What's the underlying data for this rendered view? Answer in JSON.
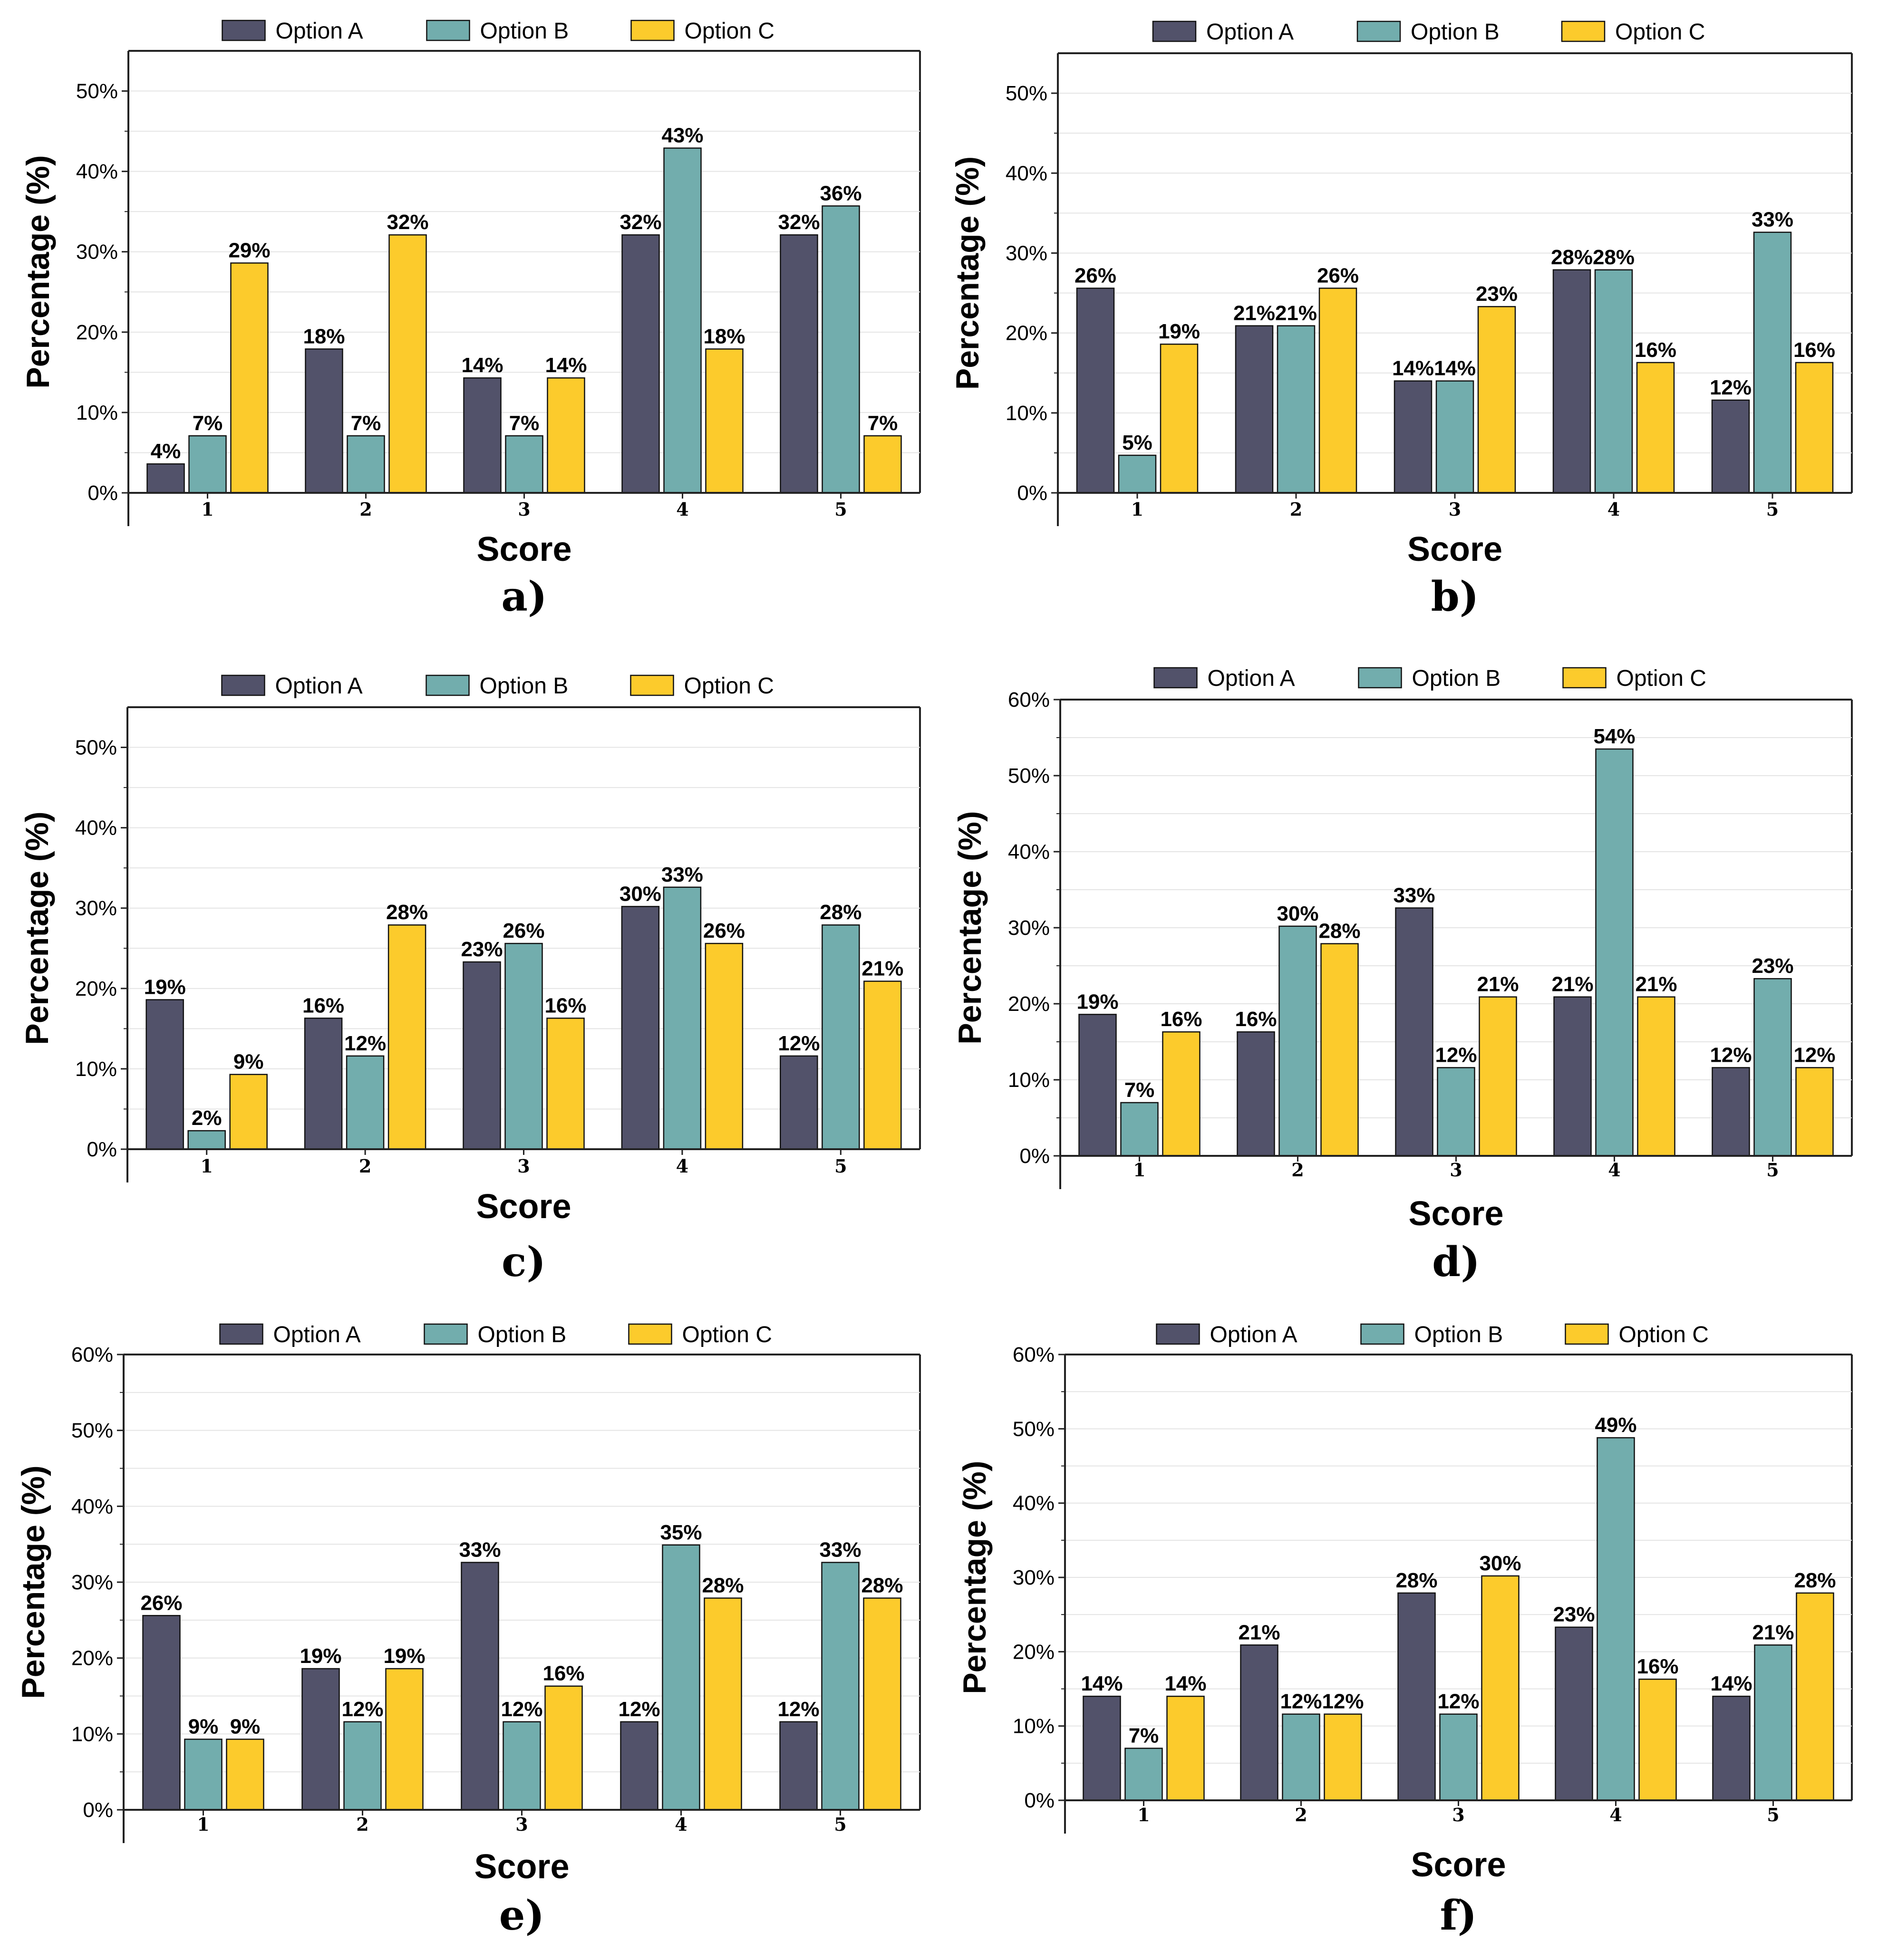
{
  "colors": {
    "option_a": "#52526a",
    "option_b": "#72adad",
    "option_c": "#fccb2c",
    "grid": "#e4e4e4",
    "axis": "#222222"
  },
  "chart_data": [
    {
      "type": "bar",
      "panel_label": "a)",
      "xlabel": "Score",
      "ylabel": "Percentage (%)",
      "ylim": [
        0,
        55
      ],
      "yticks": [
        0,
        10,
        20,
        30,
        40,
        50
      ],
      "ytick_labels": [
        "0%",
        "10%",
        "20%",
        "30%",
        "40%",
        "50%"
      ],
      "categories": [
        "1",
        "2",
        "3",
        "4",
        "5"
      ],
      "legend": "top",
      "series": [
        {
          "name": "Option A",
          "values": [
            3.6,
            17.9,
            14.3,
            32.1,
            32.1
          ],
          "labels": [
            "4%",
            "18%",
            "14%",
            "32%",
            "32%"
          ]
        },
        {
          "name": "Option B",
          "values": [
            7.1,
            7.1,
            7.1,
            42.9,
            35.7
          ],
          "labels": [
            "7%",
            "7%",
            "7%",
            "43%",
            "36%"
          ]
        },
        {
          "name": "Option C",
          "values": [
            28.6,
            32.1,
            14.3,
            17.9,
            7.1
          ],
          "labels": [
            "29%",
            "32%",
            "14%",
            "18%",
            "7%"
          ]
        }
      ]
    },
    {
      "type": "bar",
      "panel_label": "b)",
      "xlabel": "Score",
      "ylabel": "Percentage (%)",
      "ylim": [
        0,
        55
      ],
      "yticks": [
        0,
        10,
        20,
        30,
        40,
        50
      ],
      "ytick_labels": [
        "0%",
        "10%",
        "20%",
        "30%",
        "40%",
        "50%"
      ],
      "categories": [
        "1",
        "2",
        "3",
        "4",
        "5"
      ],
      "legend": "top",
      "series": [
        {
          "name": "Option A",
          "values": [
            25.6,
            20.9,
            14.0,
            27.9,
            11.6
          ],
          "labels": [
            "26%",
            "21%",
            "14%",
            "28%",
            "12%"
          ]
        },
        {
          "name": "Option B",
          "values": [
            4.7,
            20.9,
            14.0,
            27.9,
            32.6
          ],
          "labels": [
            "5%",
            "21%",
            "14%",
            "28%",
            "33%"
          ]
        },
        {
          "name": "Option C",
          "values": [
            18.6,
            25.6,
            23.3,
            16.3,
            16.3
          ],
          "labels": [
            "19%",
            "26%",
            "23%",
            "16%",
            "16%"
          ]
        }
      ]
    },
    {
      "type": "bar",
      "panel_label": "c)",
      "xlabel": "Score",
      "ylabel": "Percentage (%)",
      "ylim": [
        0,
        55
      ],
      "yticks": [
        0,
        10,
        20,
        30,
        40,
        50
      ],
      "ytick_labels": [
        "0%",
        "10%",
        "20%",
        "30%",
        "40%",
        "50%"
      ],
      "categories": [
        "1",
        "2",
        "3",
        "4",
        "5"
      ],
      "legend": "top",
      "series": [
        {
          "name": "Option A",
          "values": [
            18.6,
            16.3,
            23.3,
            30.2,
            11.6
          ],
          "labels": [
            "19%",
            "16%",
            "23%",
            "30%",
            "12%"
          ]
        },
        {
          "name": "Option B",
          "values": [
            2.3,
            11.6,
            25.6,
            32.6,
            27.9
          ],
          "labels": [
            "2%",
            "12%",
            "26%",
            "33%",
            "28%"
          ]
        },
        {
          "name": "Option C",
          "values": [
            9.3,
            27.9,
            16.3,
            25.6,
            20.9
          ],
          "labels": [
            "9%",
            "28%",
            "16%",
            "26%",
            "21%"
          ]
        }
      ]
    },
    {
      "type": "bar",
      "panel_label": "d)",
      "xlabel": "Score",
      "ylabel": "Percentage (%)",
      "ylim": [
        0,
        60
      ],
      "yticks": [
        0,
        10,
        20,
        30,
        40,
        50,
        60
      ],
      "ytick_labels": [
        "0%",
        "10%",
        "20%",
        "30%",
        "40%",
        "50%",
        "60%"
      ],
      "categories": [
        "1",
        "2",
        "3",
        "4",
        "5"
      ],
      "legend": "top",
      "series": [
        {
          "name": "Option A",
          "values": [
            18.6,
            16.3,
            32.6,
            20.9,
            11.6
          ],
          "labels": [
            "19%",
            "16%",
            "33%",
            "21%",
            "12%"
          ]
        },
        {
          "name": "Option B",
          "values": [
            7.0,
            30.2,
            11.6,
            53.5,
            23.3
          ],
          "labels": [
            "7%",
            "30%",
            "12%",
            "54%",
            "23%"
          ]
        },
        {
          "name": "Option C",
          "values": [
            16.3,
            27.9,
            20.9,
            20.9,
            11.6
          ],
          "labels": [
            "16%",
            "28%",
            "21%",
            "21%",
            "12%"
          ]
        }
      ]
    },
    {
      "type": "bar",
      "panel_label": "e)",
      "xlabel": "Score",
      "ylabel": "Percentage (%)",
      "ylim": [
        0,
        60
      ],
      "yticks": [
        0,
        10,
        20,
        30,
        40,
        50,
        60
      ],
      "ytick_labels": [
        "0%",
        "10%",
        "20%",
        "30%",
        "40%",
        "50%",
        "60%"
      ],
      "categories": [
        "1",
        "2",
        "3",
        "4",
        "5"
      ],
      "legend": "top",
      "series": [
        {
          "name": "Option A",
          "values": [
            25.6,
            18.6,
            32.6,
            11.6,
            11.6
          ],
          "labels": [
            "26%",
            "19%",
            "33%",
            "12%",
            "12%"
          ]
        },
        {
          "name": "Option B",
          "values": [
            9.3,
            11.6,
            11.6,
            34.9,
            32.6
          ],
          "labels": [
            "9%",
            "12%",
            "12%",
            "35%",
            "33%"
          ]
        },
        {
          "name": "Option C",
          "values": [
            9.3,
            18.6,
            16.3,
            27.9,
            27.9
          ],
          "labels": [
            "9%",
            "19%",
            "16%",
            "28%",
            "28%"
          ]
        }
      ]
    },
    {
      "type": "bar",
      "panel_label": "f)",
      "xlabel": "Score",
      "ylabel": "Percentage (%)",
      "ylim": [
        0,
        60
      ],
      "yticks": [
        0,
        10,
        20,
        30,
        40,
        50,
        60
      ],
      "ytick_labels": [
        "0%",
        "10%",
        "20%",
        "30%",
        "40%",
        "50%",
        "60%"
      ],
      "categories": [
        "1",
        "2",
        "3",
        "4",
        "5"
      ],
      "legend": "top",
      "series": [
        {
          "name": "Option A",
          "values": [
            14.0,
            20.9,
            27.9,
            23.3,
            14.0
          ],
          "labels": [
            "14%",
            "21%",
            "28%",
            "23%",
            "14%"
          ]
        },
        {
          "name": "Option B",
          "values": [
            7.0,
            11.6,
            11.6,
            48.8,
            20.9
          ],
          "labels": [
            "7%",
            "12%",
            "12%",
            "49%",
            "21%"
          ]
        },
        {
          "name": "Option C",
          "values": [
            14.0,
            11.6,
            30.2,
            16.3,
            27.9
          ],
          "labels": [
            "14%",
            "12%",
            "30%",
            "16%",
            "28%"
          ]
        }
      ]
    }
  ]
}
